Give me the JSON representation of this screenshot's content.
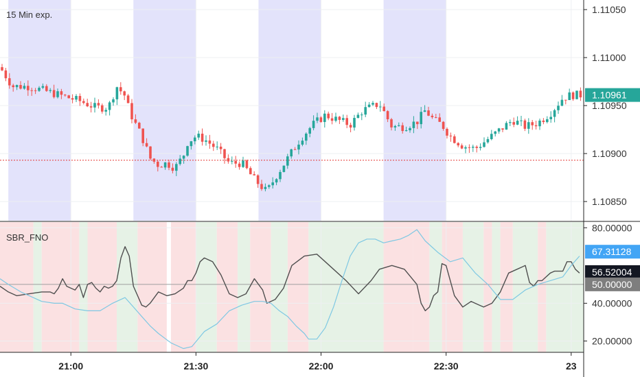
{
  "chart_data": [
    {
      "type": "candlestick",
      "title": "15 Min exp.",
      "ylim": [
        1.1083,
        1.1106
      ],
      "y_ticks": [
        "1.11050",
        "1.11000",
        "1.10950",
        "1.10900",
        "1.10850"
      ],
      "y_tick_values": [
        1.1105,
        1.11,
        1.1095,
        1.109,
        1.1085
      ],
      "last_price": "1.10961",
      "last_price_value": 1.10961,
      "reference_line": 1.10893,
      "shaded_time_ranges": [
        [
          "20:45",
          "21:00"
        ],
        [
          "21:15",
          "21:30"
        ],
        [
          "21:45",
          "22:00"
        ],
        [
          "22:15",
          "22:30"
        ]
      ],
      "close_series": {
        "x": [
          "20:43",
          "20:46",
          "20:50",
          "20:54",
          "20:58",
          "21:02",
          "21:06",
          "21:09",
          "21:11",
          "21:13",
          "21:14",
          "21:15",
          "21:17",
          "21:19",
          "21:21",
          "21:23",
          "21:25",
          "21:27",
          "21:28",
          "21:30",
          "21:32",
          "21:35",
          "21:38",
          "21:41",
          "21:44",
          "21:47",
          "21:49",
          "21:52",
          "21:55",
          "21:58",
          "22:01",
          "22:04",
          "22:07",
          "22:10",
          "22:14",
          "22:17",
          "22:20",
          "22:23",
          "22:25",
          "22:27",
          "22:29",
          "22:31",
          "22:34",
          "22:37",
          "22:40",
          "22:43",
          "22:46",
          "22:49",
          "22:52",
          "22:55",
          "22:58",
          "23:00",
          "23:02"
        ],
        "y": [
          1.1099,
          1.1097,
          1.1097,
          1.10965,
          1.1096,
          1.10955,
          1.10948,
          1.10948,
          1.1097,
          1.1096,
          1.10945,
          1.10935,
          1.10918,
          1.10895,
          1.10888,
          1.1089,
          1.10885,
          1.10898,
          1.10912,
          1.10918,
          1.10915,
          1.10905,
          1.1089,
          1.1089,
          1.10873,
          1.1086,
          1.10875,
          1.10895,
          1.10915,
          1.1093,
          1.1094,
          1.10935,
          1.1093,
          1.10945,
          1.10952,
          1.10928,
          1.10928,
          1.10933,
          1.10945,
          1.10935,
          1.1093,
          1.10918,
          1.10908,
          1.10905,
          1.10915,
          1.10925,
          1.10935,
          1.10928,
          1.10932,
          1.10942,
          1.10958,
          1.10961,
          1.10961
        ]
      }
    },
    {
      "type": "line",
      "title": "SBR_FNO",
      "ylim": [
        14,
        83
      ],
      "y_ticks": [
        "80.00000",
        "40.00000",
        "20.00000"
      ],
      "y_tick_values": [
        80,
        40,
        20
      ],
      "x_ticks": [
        "21:00",
        "21:30",
        "22:00",
        "22:30",
        "23"
      ],
      "x_tick_values": [
        "21:00",
        "21:30",
        "22:00",
        "22:30",
        "23:00"
      ],
      "reference_line": 50,
      "value_badges": [
        {
          "label": "67.31128",
          "value": 67.31128,
          "color": "#42a5f5"
        },
        {
          "label": "56.52004",
          "value": 56.52004,
          "color": "#131722"
        },
        {
          "label": "50.00000",
          "value": 50,
          "color": "#7e7e7e"
        }
      ],
      "series": [
        {
          "color": "#4f4f4f",
          "x": [
            "20:43",
            "20:45",
            "20:47",
            "20:50",
            "20:53",
            "20:55",
            "20:56",
            "20:57",
            "20:58",
            "20:59",
            "21:00",
            "21:01",
            "21:02",
            "21:03",
            "21:04",
            "21:05",
            "21:06",
            "21:07",
            "21:08",
            "21:09",
            "21:10",
            "21:11",
            "21:12",
            "21:13",
            "21:14",
            "21:15",
            "21:16",
            "21:17",
            "21:18",
            "21:19",
            "21:21",
            "21:23",
            "21:25",
            "21:27",
            "21:28",
            "21:29",
            "21:30",
            "21:31",
            "21:32",
            "21:34",
            "21:36",
            "21:38",
            "21:40",
            "21:42",
            "21:44",
            "21:46",
            "21:47",
            "21:49",
            "21:51",
            "21:53",
            "21:56",
            "21:59",
            "22:01",
            "22:03",
            "22:06",
            "22:09",
            "22:12",
            "22:14",
            "22:17",
            "22:20",
            "22:23",
            "22:24",
            "22:25",
            "22:26",
            "22:27",
            "22:28",
            "22:29",
            "22:30",
            "22:32",
            "22:34",
            "22:36",
            "22:38",
            "22:39",
            "22:41",
            "22:43",
            "22:45",
            "22:47",
            "22:49",
            "22:50",
            "22:51",
            "22:52",
            "22:53",
            "22:55",
            "22:56",
            "22:58",
            "22:59",
            "23:00",
            "23:01",
            "23:02"
          ],
          "y": [
            49,
            46,
            44,
            45,
            46,
            46,
            45,
            48,
            53,
            49,
            48,
            47,
            50,
            43,
            50,
            51,
            48,
            46,
            49,
            48,
            49,
            52,
            64,
            70,
            65,
            49,
            44,
            39,
            38,
            40,
            46,
            44,
            45,
            48,
            52,
            52,
            56,
            62,
            64,
            62,
            55,
            45,
            43,
            45,
            53,
            47,
            40,
            42,
            48,
            60,
            65,
            66,
            62,
            58,
            52,
            45,
            52,
            58,
            60,
            58,
            50,
            40,
            36,
            38,
            44,
            46,
            61,
            60,
            44,
            38,
            41,
            39,
            38,
            40,
            46,
            56,
            58,
            60,
            51,
            49,
            52,
            52,
            56,
            57,
            57,
            62,
            62,
            58,
            56
          ]
        },
        {
          "color": "#7ec8e3",
          "x": [
            "20:43",
            "20:45",
            "20:48",
            "20:50",
            "20:53",
            "20:56",
            "20:58",
            "21:01",
            "21:04",
            "21:07",
            "21:10",
            "21:13",
            "21:15",
            "21:17",
            "21:19",
            "21:21",
            "21:24",
            "21:27",
            "21:29",
            "21:32",
            "21:35",
            "21:38",
            "21:41",
            "21:44",
            "21:46",
            "21:48",
            "21:50",
            "21:52",
            "21:54",
            "21:56",
            "21:57",
            "21:59",
            "22:01",
            "22:03",
            "22:05",
            "22:07",
            "22:09",
            "22:11",
            "22:13",
            "22:15",
            "22:17",
            "22:19",
            "22:21",
            "22:23",
            "22:25",
            "22:28",
            "22:31",
            "22:34",
            "22:37",
            "22:40",
            "22:43",
            "22:46",
            "22:49",
            "22:52",
            "22:55",
            "22:58",
            "23:00",
            "23:02"
          ],
          "y": [
            53,
            50,
            46,
            44,
            41,
            40,
            40,
            37,
            36,
            36,
            40,
            43,
            38,
            33,
            28,
            24,
            19,
            16,
            17,
            25,
            29,
            36,
            39,
            41,
            41,
            40,
            36,
            33,
            28,
            24,
            21,
            21,
            27,
            38,
            52,
            65,
            72,
            74,
            74,
            72,
            73,
            74,
            76,
            79,
            73,
            67,
            62,
            64,
            56,
            50,
            42,
            42,
            47,
            50,
            52,
            54,
            60,
            65
          ]
        }
      ],
      "background_zones": [
        {
          "from": "20:43",
          "to": "20:51",
          "state": "down"
        },
        {
          "from": "20:51",
          "to": "20:53",
          "state": "up"
        },
        {
          "from": "20:53",
          "to": "21:02",
          "state": "down"
        },
        {
          "from": "21:02",
          "to": "21:04",
          "state": "up"
        },
        {
          "from": "21:04",
          "to": "21:11",
          "state": "down"
        },
        {
          "from": "21:11",
          "to": "21:16",
          "state": "up"
        },
        {
          "from": "21:16",
          "to": "21:23",
          "state": "down"
        },
        {
          "from": "21:24",
          "to": "21:30",
          "state": "down"
        },
        {
          "from": "21:30",
          "to": "21:35",
          "state": "up"
        },
        {
          "from": "21:35",
          "to": "21:40",
          "state": "down"
        },
        {
          "from": "21:40",
          "to": "21:43",
          "state": "up"
        },
        {
          "from": "21:43",
          "to": "21:48",
          "state": "down"
        },
        {
          "from": "21:48",
          "to": "21:52",
          "state": "up"
        },
        {
          "from": "21:52",
          "to": "21:57",
          "state": "down"
        },
        {
          "from": "21:57",
          "to": "22:15",
          "state": "up"
        },
        {
          "from": "22:15",
          "to": "22:22",
          "state": "down"
        },
        {
          "from": "22:22",
          "to": "22:26",
          "state": "down"
        },
        {
          "from": "22:26",
          "to": "22:29",
          "state": "up"
        },
        {
          "from": "22:29",
          "to": "22:34",
          "state": "down"
        },
        {
          "from": "22:34",
          "to": "22:39",
          "state": "up"
        },
        {
          "from": "22:39",
          "to": "22:41",
          "state": "down"
        },
        {
          "from": "22:41",
          "to": "22:43",
          "state": "up"
        },
        {
          "from": "22:43",
          "to": "22:46",
          "state": "down"
        },
        {
          "from": "22:46",
          "to": "22:52",
          "state": "up"
        },
        {
          "from": "22:52",
          "to": "22:54",
          "state": "down"
        },
        {
          "from": "22:54",
          "to": "23:03",
          "state": "up"
        }
      ]
    }
  ],
  "colors": {
    "up_candle": "#26a69a",
    "down_candle": "#ef5350",
    "session_shade": "#e3e3fb",
    "zone_up": "#e6f2e6",
    "zone_down": "#fbe1e2",
    "last_price_badge": "#26a69a",
    "reference_line_top": "#e53935",
    "grid": "#eeeff2",
    "axis": "#222222"
  }
}
